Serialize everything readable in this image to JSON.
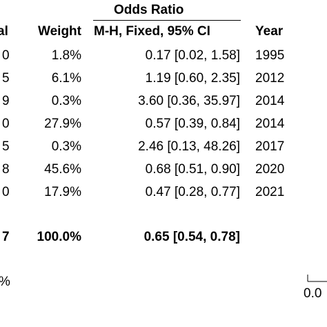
{
  "chart_data": {
    "type": "table",
    "group_header": "Odds Ratio",
    "columns": [
      "al",
      "Weight",
      "M-H, Fixed, 95% CI",
      "Year"
    ],
    "rows": [
      {
        "total_fragment": "0",
        "weight": "1.8%",
        "ci": "0.17 [0.02, 1.58]",
        "year": "1995"
      },
      {
        "total_fragment": "5",
        "weight": "6.1%",
        "ci": "1.19 [0.60, 2.35]",
        "year": "2012"
      },
      {
        "total_fragment": "9",
        "weight": "0.3%",
        "ci": "3.60 [0.36, 35.97]",
        "year": "2014"
      },
      {
        "total_fragment": "0",
        "weight": "27.9%",
        "ci": "0.57 [0.39, 0.84]",
        "year": "2014"
      },
      {
        "total_fragment": "5",
        "weight": "0.3%",
        "ci": "2.46 [0.13, 48.26]",
        "year": "2017"
      },
      {
        "total_fragment": "8",
        "weight": "45.6%",
        "ci": "0.68 [0.51, 0.90]",
        "year": "2020"
      },
      {
        "total_fragment": "0",
        "weight": "17.9%",
        "ci": "0.47 [0.28, 0.77]",
        "year": "2021"
      }
    ],
    "total": {
      "total_fragment": "7",
      "weight": "100.0%",
      "ci": "0.65 [0.54, 0.78]"
    },
    "heterogeneity_fragment": "%",
    "axis_tick_fragment": "0.0"
  }
}
